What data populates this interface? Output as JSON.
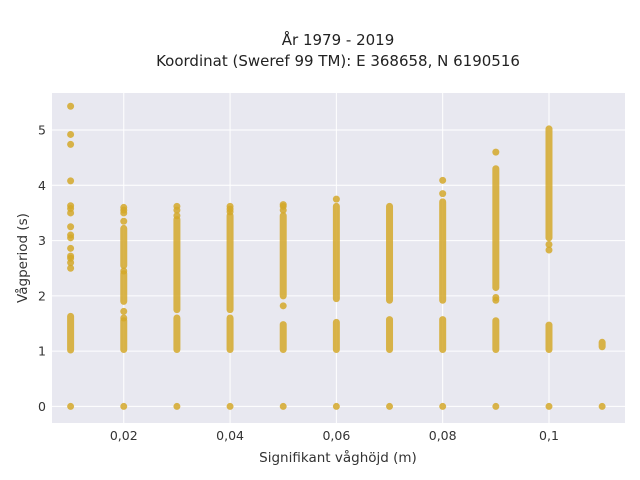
{
  "chart_data": {
    "type": "scatter",
    "title_line1": "År 1979 - 2019",
    "title_line2": "Koordinat (Sweref 99 TM): E 368658, N 6190516",
    "xlabel": "Signifikant våghöjd (m)",
    "ylabel": "Vågperiod (s)",
    "xlim": [
      0.0065,
      0.1143
    ],
    "ylim": [
      -0.3,
      5.67
    ],
    "x_ticks": [
      0.02,
      0.04,
      0.06,
      0.08,
      0.1
    ],
    "x_tick_labels": [
      "0,02",
      "0,04",
      "0,06",
      "0,08",
      "0,1"
    ],
    "y_ticks": [
      0,
      1,
      2,
      3,
      4,
      5
    ],
    "y_tick_labels": [
      "0",
      "1",
      "2",
      "3",
      "4",
      "5"
    ],
    "grid": true,
    "background_color": "#e8e8f0",
    "marker_color": "#d4a82a",
    "columns": [
      {
        "x": 0.01,
        "ranges": [
          [
            1.02,
            1.63
          ]
        ],
        "points": [
          0,
          2.5,
          2.6,
          2.68,
          2.72,
          2.86,
          3.05,
          3.1,
          3.25,
          3.5,
          3.58,
          3.63,
          4.08,
          4.74,
          4.92,
          5.43
        ]
      },
      {
        "x": 0.02,
        "ranges": [
          [
            1.03,
            1.55
          ],
          [
            1.9,
            2.4
          ],
          [
            2.55,
            3.22
          ]
        ],
        "points": [
          0,
          1.6,
          1.72,
          2.45,
          3.35,
          3.5,
          3.55,
          3.6
        ]
      },
      {
        "x": 0.03,
        "ranges": [
          [
            1.03,
            1.6
          ],
          [
            1.75,
            3.38
          ]
        ],
        "points": [
          0,
          3.45,
          3.55,
          3.62
        ]
      },
      {
        "x": 0.04,
        "ranges": [
          [
            1.03,
            1.6
          ],
          [
            1.75,
            3.45
          ]
        ],
        "points": [
          0,
          3.52,
          3.57,
          3.62
        ]
      },
      {
        "x": 0.05,
        "ranges": [
          [
            1.03,
            1.48
          ],
          [
            2.0,
            3.45
          ]
        ],
        "points": [
          0,
          1.82,
          3.55,
          3.62,
          3.65
        ]
      },
      {
        "x": 0.06,
        "ranges": [
          [
            1.03,
            1.52
          ],
          [
            1.95,
            3.62
          ]
        ],
        "points": [
          0,
          3.75
        ]
      },
      {
        "x": 0.07,
        "ranges": [
          [
            1.03,
            1.57
          ],
          [
            1.92,
            3.62
          ]
        ],
        "points": [
          0
        ]
      },
      {
        "x": 0.08,
        "ranges": [
          [
            1.03,
            1.57
          ],
          [
            1.92,
            3.7
          ]
        ],
        "points": [
          0,
          3.85,
          4.09
        ]
      },
      {
        "x": 0.09,
        "ranges": [
          [
            1.03,
            1.55
          ],
          [
            2.15,
            4.3
          ]
        ],
        "points": [
          0,
          1.92,
          1.97,
          4.6
        ]
      },
      {
        "x": 0.1,
        "ranges": [
          [
            1.03,
            1.47
          ],
          [
            3.05,
            5.02
          ]
        ],
        "points": [
          0,
          2.83,
          2.93
        ]
      },
      {
        "x": 0.11,
        "ranges": [
          [
            1.08,
            1.16
          ]
        ],
        "points": [
          0
        ]
      }
    ]
  }
}
